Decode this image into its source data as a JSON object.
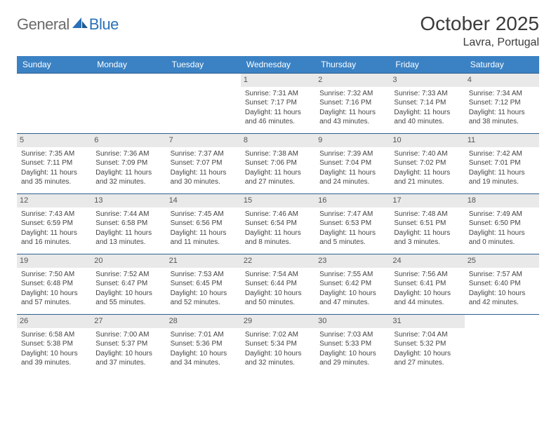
{
  "logo": {
    "text1": "General",
    "text2": "Blue"
  },
  "header": {
    "month_title": "October 2025",
    "location": "Lavra, Portugal"
  },
  "colors": {
    "header_bg": "#3b82c4",
    "rule": "#2e5f8f",
    "daynum_bg": "#e9e9e9",
    "logo_gray": "#6b6b6b",
    "logo_blue": "#2a71b8"
  },
  "day_headers": [
    "Sunday",
    "Monday",
    "Tuesday",
    "Wednesday",
    "Thursday",
    "Friday",
    "Saturday"
  ],
  "weeks": [
    [
      null,
      null,
      null,
      {
        "n": "1",
        "sunrise": "7:31 AM",
        "sunset": "7:17 PM",
        "dl1": "Daylight: 11 hours",
        "dl2": "and 46 minutes."
      },
      {
        "n": "2",
        "sunrise": "7:32 AM",
        "sunset": "7:16 PM",
        "dl1": "Daylight: 11 hours",
        "dl2": "and 43 minutes."
      },
      {
        "n": "3",
        "sunrise": "7:33 AM",
        "sunset": "7:14 PM",
        "dl1": "Daylight: 11 hours",
        "dl2": "and 40 minutes."
      },
      {
        "n": "4",
        "sunrise": "7:34 AM",
        "sunset": "7:12 PM",
        "dl1": "Daylight: 11 hours",
        "dl2": "and 38 minutes."
      }
    ],
    [
      {
        "n": "5",
        "sunrise": "7:35 AM",
        "sunset": "7:11 PM",
        "dl1": "Daylight: 11 hours",
        "dl2": "and 35 minutes."
      },
      {
        "n": "6",
        "sunrise": "7:36 AM",
        "sunset": "7:09 PM",
        "dl1": "Daylight: 11 hours",
        "dl2": "and 32 minutes."
      },
      {
        "n": "7",
        "sunrise": "7:37 AM",
        "sunset": "7:07 PM",
        "dl1": "Daylight: 11 hours",
        "dl2": "and 30 minutes."
      },
      {
        "n": "8",
        "sunrise": "7:38 AM",
        "sunset": "7:06 PM",
        "dl1": "Daylight: 11 hours",
        "dl2": "and 27 minutes."
      },
      {
        "n": "9",
        "sunrise": "7:39 AM",
        "sunset": "7:04 PM",
        "dl1": "Daylight: 11 hours",
        "dl2": "and 24 minutes."
      },
      {
        "n": "10",
        "sunrise": "7:40 AM",
        "sunset": "7:02 PM",
        "dl1": "Daylight: 11 hours",
        "dl2": "and 21 minutes."
      },
      {
        "n": "11",
        "sunrise": "7:42 AM",
        "sunset": "7:01 PM",
        "dl1": "Daylight: 11 hours",
        "dl2": "and 19 minutes."
      }
    ],
    [
      {
        "n": "12",
        "sunrise": "7:43 AM",
        "sunset": "6:59 PM",
        "dl1": "Daylight: 11 hours",
        "dl2": "and 16 minutes."
      },
      {
        "n": "13",
        "sunrise": "7:44 AM",
        "sunset": "6:58 PM",
        "dl1": "Daylight: 11 hours",
        "dl2": "and 13 minutes."
      },
      {
        "n": "14",
        "sunrise": "7:45 AM",
        "sunset": "6:56 PM",
        "dl1": "Daylight: 11 hours",
        "dl2": "and 11 minutes."
      },
      {
        "n": "15",
        "sunrise": "7:46 AM",
        "sunset": "6:54 PM",
        "dl1": "Daylight: 11 hours",
        "dl2": "and 8 minutes."
      },
      {
        "n": "16",
        "sunrise": "7:47 AM",
        "sunset": "6:53 PM",
        "dl1": "Daylight: 11 hours",
        "dl2": "and 5 minutes."
      },
      {
        "n": "17",
        "sunrise": "7:48 AM",
        "sunset": "6:51 PM",
        "dl1": "Daylight: 11 hours",
        "dl2": "and 3 minutes."
      },
      {
        "n": "18",
        "sunrise": "7:49 AM",
        "sunset": "6:50 PM",
        "dl1": "Daylight: 11 hours",
        "dl2": "and 0 minutes."
      }
    ],
    [
      {
        "n": "19",
        "sunrise": "7:50 AM",
        "sunset": "6:48 PM",
        "dl1": "Daylight: 10 hours",
        "dl2": "and 57 minutes."
      },
      {
        "n": "20",
        "sunrise": "7:52 AM",
        "sunset": "6:47 PM",
        "dl1": "Daylight: 10 hours",
        "dl2": "and 55 minutes."
      },
      {
        "n": "21",
        "sunrise": "7:53 AM",
        "sunset": "6:45 PM",
        "dl1": "Daylight: 10 hours",
        "dl2": "and 52 minutes."
      },
      {
        "n": "22",
        "sunrise": "7:54 AM",
        "sunset": "6:44 PM",
        "dl1": "Daylight: 10 hours",
        "dl2": "and 50 minutes."
      },
      {
        "n": "23",
        "sunrise": "7:55 AM",
        "sunset": "6:42 PM",
        "dl1": "Daylight: 10 hours",
        "dl2": "and 47 minutes."
      },
      {
        "n": "24",
        "sunrise": "7:56 AM",
        "sunset": "6:41 PM",
        "dl1": "Daylight: 10 hours",
        "dl2": "and 44 minutes."
      },
      {
        "n": "25",
        "sunrise": "7:57 AM",
        "sunset": "6:40 PM",
        "dl1": "Daylight: 10 hours",
        "dl2": "and 42 minutes."
      }
    ],
    [
      {
        "n": "26",
        "sunrise": "6:58 AM",
        "sunset": "5:38 PM",
        "dl1": "Daylight: 10 hours",
        "dl2": "and 39 minutes."
      },
      {
        "n": "27",
        "sunrise": "7:00 AM",
        "sunset": "5:37 PM",
        "dl1": "Daylight: 10 hours",
        "dl2": "and 37 minutes."
      },
      {
        "n": "28",
        "sunrise": "7:01 AM",
        "sunset": "5:36 PM",
        "dl1": "Daylight: 10 hours",
        "dl2": "and 34 minutes."
      },
      {
        "n": "29",
        "sunrise": "7:02 AM",
        "sunset": "5:34 PM",
        "dl1": "Daylight: 10 hours",
        "dl2": "and 32 minutes."
      },
      {
        "n": "30",
        "sunrise": "7:03 AM",
        "sunset": "5:33 PM",
        "dl1": "Daylight: 10 hours",
        "dl2": "and 29 minutes."
      },
      {
        "n": "31",
        "sunrise": "7:04 AM",
        "sunset": "5:32 PM",
        "dl1": "Daylight: 10 hours",
        "dl2": "and 27 minutes."
      },
      null
    ]
  ]
}
